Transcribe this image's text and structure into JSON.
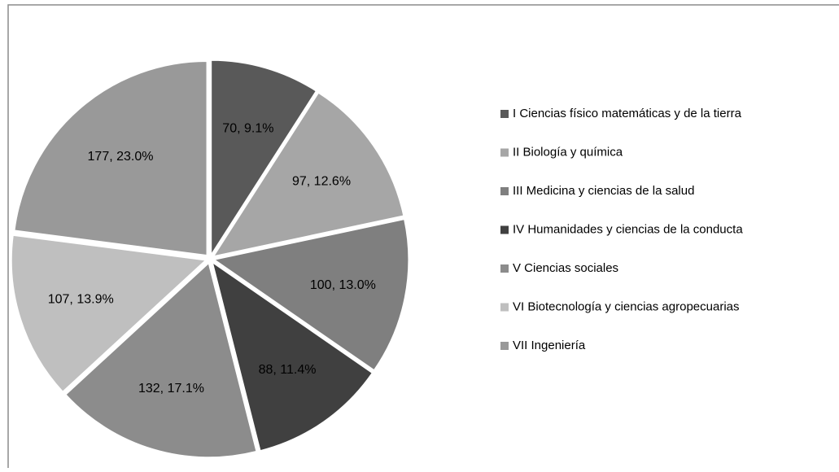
{
  "chart_data": {
    "type": "pie",
    "categories": [
      "I Ciencias físico matemáticas  y de la tierra",
      "II Biología y química",
      "III Medicina y ciencias de la salud",
      "IV Humanidades y ciencias de la conducta",
      "V Ciencias sociales",
      "VI Biotecnología y ciencias agropecuarias",
      "VII Ingeniería"
    ],
    "values": [
      70,
      97,
      100,
      88,
      132,
      107,
      177
    ],
    "value_labels": [
      "70, 9.1%",
      "97, 12.6%",
      "100, 13.0%",
      "88, 11.4%",
      "132, 17.1%",
      "107, 13.9%",
      "177, 23.0%"
    ],
    "colors": [
      "#595959",
      "#a6a6a6",
      "#7f7f7f",
      "#404040",
      "#8c8c8c",
      "#bfbfbf",
      "#999999"
    ],
    "legend": "right"
  }
}
